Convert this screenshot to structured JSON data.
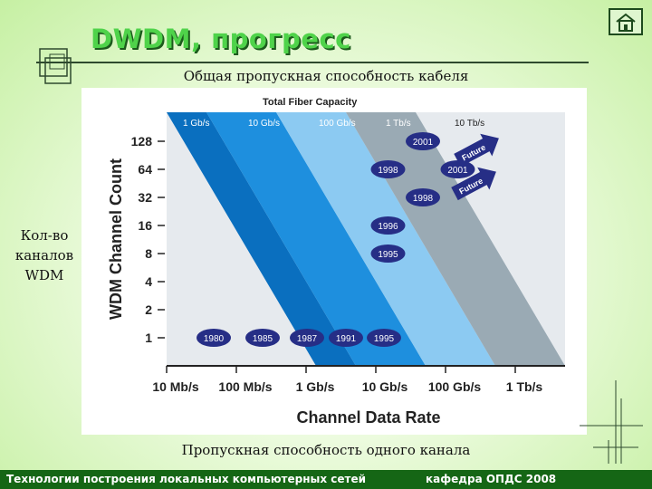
{
  "slide": {
    "title": "DWDM, прогресс",
    "caption_top": "Общая пропускная способность кабеля",
    "caption_bottom": "Пропускная способность одного канала",
    "side_label": [
      "Кол-во",
      "каналов",
      "WDM"
    ]
  },
  "footer": {
    "left": "Технологии построения локальных компьютерных сетей",
    "right": "кафедра ОПДС   2008"
  },
  "nav": {
    "home_icon": "home-icon"
  },
  "colors": {
    "title": "#4fd34a",
    "footer_bg": "#156615",
    "band_dark": "#0a6fbf",
    "band_mid": "#1e8fde",
    "band_light": "#8ccaf2",
    "band_gray": "#9aaab4",
    "marker": "#262e86"
  },
  "chart_data": {
    "type": "diagram",
    "title": "Total Fiber Capacity",
    "xlabel": "Channel Data Rate",
    "ylabel": "WDM Channel Count",
    "x_ticks": [
      "10 Mb/s",
      "100 Mb/s",
      "1 Gb/s",
      "10 Gb/s",
      "100 Gb/s",
      "1 Tb/s"
    ],
    "y_ticks": [
      "1",
      "2",
      "4",
      "8",
      "16",
      "32",
      "64",
      "128"
    ],
    "capacity_bands": [
      "1 Gb/s",
      "10 Gb/s",
      "100 Gb/s",
      "1 Tb/s",
      "10 Tb/s"
    ],
    "points": [
      {
        "label": "1980",
        "x": "10 Mb/s",
        "y": 1
      },
      {
        "label": "1985",
        "x": "100 Mb/s",
        "y": 1
      },
      {
        "label": "1987",
        "x": "1 Gb/s",
        "y": 1
      },
      {
        "label": "1991",
        "x": "2.5 Gb/s",
        "y": 1
      },
      {
        "label": "1995",
        "x": "10 Gb/s",
        "y": 1
      },
      {
        "label": "1995",
        "x": "2.5 Gb/s",
        "y": 8
      },
      {
        "label": "1996",
        "x": "2.5 Gb/s",
        "y": 16
      },
      {
        "label": "1998",
        "x": "2.5 Gb/s",
        "y": 64
      },
      {
        "label": "1998",
        "x": "10 Gb/s",
        "y": 32
      },
      {
        "label": "2001",
        "x": "10 Gb/s",
        "y": 128
      },
      {
        "label": "2001",
        "x": "40 Gb/s",
        "y": 64
      }
    ],
    "future_arrows": [
      "Future",
      "Future"
    ]
  }
}
